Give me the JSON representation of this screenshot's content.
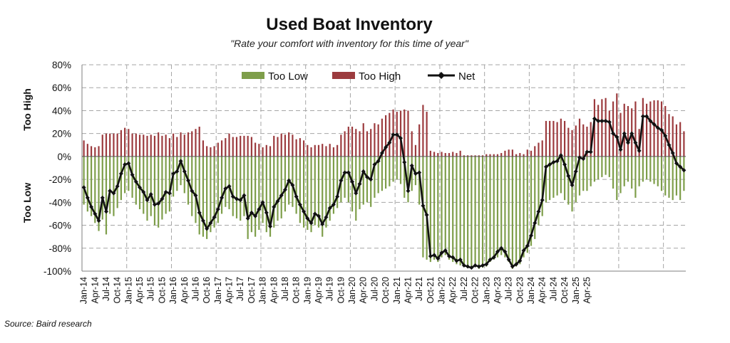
{
  "chart_data": {
    "type": "bar",
    "title": "Used Boat Inventory",
    "subtitle": "\"Rate your comfort with inventory for this time of year\"",
    "ylabel_top": "Too High",
    "ylabel_bottom": "Too Low",
    "source": "Source: Baird research",
    "ylim": [
      -100,
      80
    ],
    "yticks": [
      "80%",
      "60%",
      "40%",
      "20%",
      "0%",
      "-20%",
      "-40%",
      "-60%",
      "-80%",
      "-100%"
    ],
    "ytick_values": [
      80,
      60,
      40,
      20,
      0,
      -20,
      -40,
      -60,
      -80,
      -100
    ],
    "grid": true,
    "legend": [
      "Too Low",
      "Too High",
      "Net"
    ],
    "legend_position": "top-center",
    "colors": {
      "too_low": "#7e9e4a",
      "too_high": "#9c3b3e",
      "net": "#111111",
      "grid": "#a6a6a6",
      "axis": "#7f7f7f"
    },
    "xtick_labels": [
      "Jan-14",
      "Apr-14",
      "Jul-14",
      "Oct-14",
      "Jan-15",
      "Apr-15",
      "Jul-15",
      "Oct-15",
      "Jan-16",
      "Apr-16",
      "Jul-16",
      "Oct-16",
      "Jan-17",
      "Apr-17",
      "Jul-17",
      "Oct-17",
      "Jan-18",
      "Apr-18",
      "Jul-18",
      "Oct-18",
      "Jan-19",
      "Apr-19",
      "Jul-19",
      "Oct-19",
      "Jan-20",
      "Apr-20",
      "Jul-20",
      "Oct-20",
      "Jan-21",
      "Apr-21",
      "Jul-21",
      "Oct-21",
      "Jan-22",
      "Apr-22",
      "Jul-22",
      "Oct-22",
      "Jan-23",
      "Apr-23",
      "Jul-23",
      "Oct-23",
      "Jan-24",
      "Apr-24",
      "Jul-24",
      "Oct-24",
      "Jan-25",
      "Apr-25"
    ],
    "series": [
      {
        "name": "Too High",
        "values": [
          14,
          11,
          9,
          8,
          9,
          19,
          20,
          20,
          20,
          20,
          23,
          25,
          24,
          20,
          20,
          19,
          19,
          18,
          19,
          18,
          21,
          18,
          19,
          16,
          20,
          17,
          21,
          19,
          21,
          22,
          24,
          26,
          14,
          9,
          8,
          9,
          12,
          14,
          16,
          20,
          17,
          17,
          18,
          18,
          18,
          17,
          12,
          11,
          8,
          10,
          9,
          18,
          17,
          20,
          19,
          21,
          19,
          15,
          16,
          14,
          10,
          8,
          10,
          10,
          11,
          9,
          11,
          8,
          10,
          19,
          22,
          26,
          26,
          24,
          22,
          29,
          22,
          24,
          29,
          28,
          33,
          36,
          38,
          41,
          39,
          40,
          41,
          40,
          22,
          10,
          28,
          45,
          39,
          5,
          4,
          3,
          4,
          3,
          3,
          4,
          3,
          5,
          1,
          1,
          1,
          1,
          1,
          1,
          2,
          2,
          2,
          2,
          3,
          5,
          6,
          6,
          2,
          3,
          2,
          6,
          5,
          9,
          12,
          14,
          31,
          31,
          31,
          30,
          33,
          31,
          25,
          23,
          27,
          33,
          28,
          26,
          30,
          50,
          45,
          50,
          51,
          40,
          48,
          55,
          38,
          46,
          44,
          42,
          48,
          24,
          51,
          46,
          48,
          49,
          49,
          48,
          44,
          37,
          35,
          28,
          30,
          22
        ]
      },
      {
        "name": "Too Low",
        "values": [
          -42,
          -48,
          -52,
          -58,
          -65,
          -55,
          -68,
          -50,
          -52,
          -45,
          -38,
          -32,
          -30,
          -36,
          -42,
          -46,
          -50,
          -56,
          -52,
          -60,
          -62,
          -55,
          -50,
          -48,
          -35,
          -30,
          -25,
          -32,
          -42,
          -52,
          -58,
          -68,
          -70,
          -72,
          -66,
          -62,
          -58,
          -50,
          -44,
          -46,
          -52,
          -54,
          -56,
          -52,
          -72,
          -66,
          -70,
          -64,
          -58,
          -66,
          -70,
          -62,
          -56,
          -54,
          -48,
          -42,
          -44,
          -50,
          -58,
          -62,
          -64,
          -66,
          -60,
          -62,
          -70,
          -62,
          -56,
          -50,
          -45,
          -40,
          -36,
          -40,
          -48,
          -56,
          -46,
          -42,
          -40,
          -44,
          -36,
          -32,
          -30,
          -28,
          -26,
          -22,
          -20,
          -24,
          -36,
          -40,
          -30,
          -25,
          -42,
          -88,
          -90,
          -92,
          -90,
          -92,
          -88,
          -86,
          -90,
          -92,
          -94,
          -95,
          -96,
          -97,
          -98,
          -96,
          -98,
          -97,
          -96,
          -92,
          -90,
          -88,
          -86,
          -88,
          -92,
          -98,
          -96,
          -94,
          -88,
          -84,
          -78,
          -72,
          -60,
          -52,
          -40,
          -38,
          -36,
          -34,
          -32,
          -38,
          -42,
          -48,
          -40,
          -34,
          -30,
          -30,
          -26,
          -22,
          -20,
          -18,
          -16,
          -18,
          -28,
          -38,
          -32,
          -26,
          -22,
          -28,
          -36,
          -26,
          -22,
          -20,
          -22,
          -24,
          -26,
          -30,
          -34,
          -36,
          -38,
          -34,
          -38,
          -30
        ]
      },
      {
        "name": "Net",
        "values": [
          -27,
          -36,
          -44,
          -50,
          -56,
          -36,
          -48,
          -30,
          -32,
          -26,
          -15,
          -7,
          -6,
          -16,
          -22,
          -27,
          -31,
          -38,
          -33,
          -42,
          -41,
          -37,
          -31,
          -32,
          -15,
          -13,
          -4,
          -13,
          -21,
          -30,
          -34,
          -49,
          -56,
          -63,
          -58,
          -53,
          -46,
          -36,
          -28,
          -26,
          -35,
          -37,
          -38,
          -34,
          -54,
          -49,
          -52,
          -46,
          -40,
          -49,
          -61,
          -44,
          -39,
          -34,
          -29,
          -21,
          -25,
          -35,
          -42,
          -48,
          -54,
          -58,
          -50,
          -52,
          -59,
          -53,
          -45,
          -42,
          -35,
          -21,
          -14,
          -14,
          -22,
          -32,
          -24,
          -13,
          -18,
          -20,
          -7,
          -4,
          3,
          8,
          12,
          19,
          19,
          16,
          -5,
          -30,
          -8,
          -15,
          -14,
          -43,
          -51,
          -87,
          -86,
          -89,
          -84,
          -82,
          -87,
          -88,
          -91,
          -90,
          -95,
          -96,
          -97,
          -95,
          -96,
          -95,
          -94,
          -90,
          -88,
          -83,
          -80,
          -83,
          -90,
          -96,
          -94,
          -91,
          -82,
          -78,
          -69,
          -58,
          -48,
          -38,
          -9,
          -7,
          -5,
          -4,
          1,
          -7,
          -17,
          -25,
          -13,
          -1,
          -2,
          4,
          4,
          33,
          31,
          31,
          31,
          30,
          20,
          17,
          6,
          20,
          12,
          20,
          12,
          5,
          35,
          35,
          31,
          28,
          25,
          23,
          18,
          10,
          3,
          -6,
          -9,
          -12
        ]
      }
    ]
  }
}
